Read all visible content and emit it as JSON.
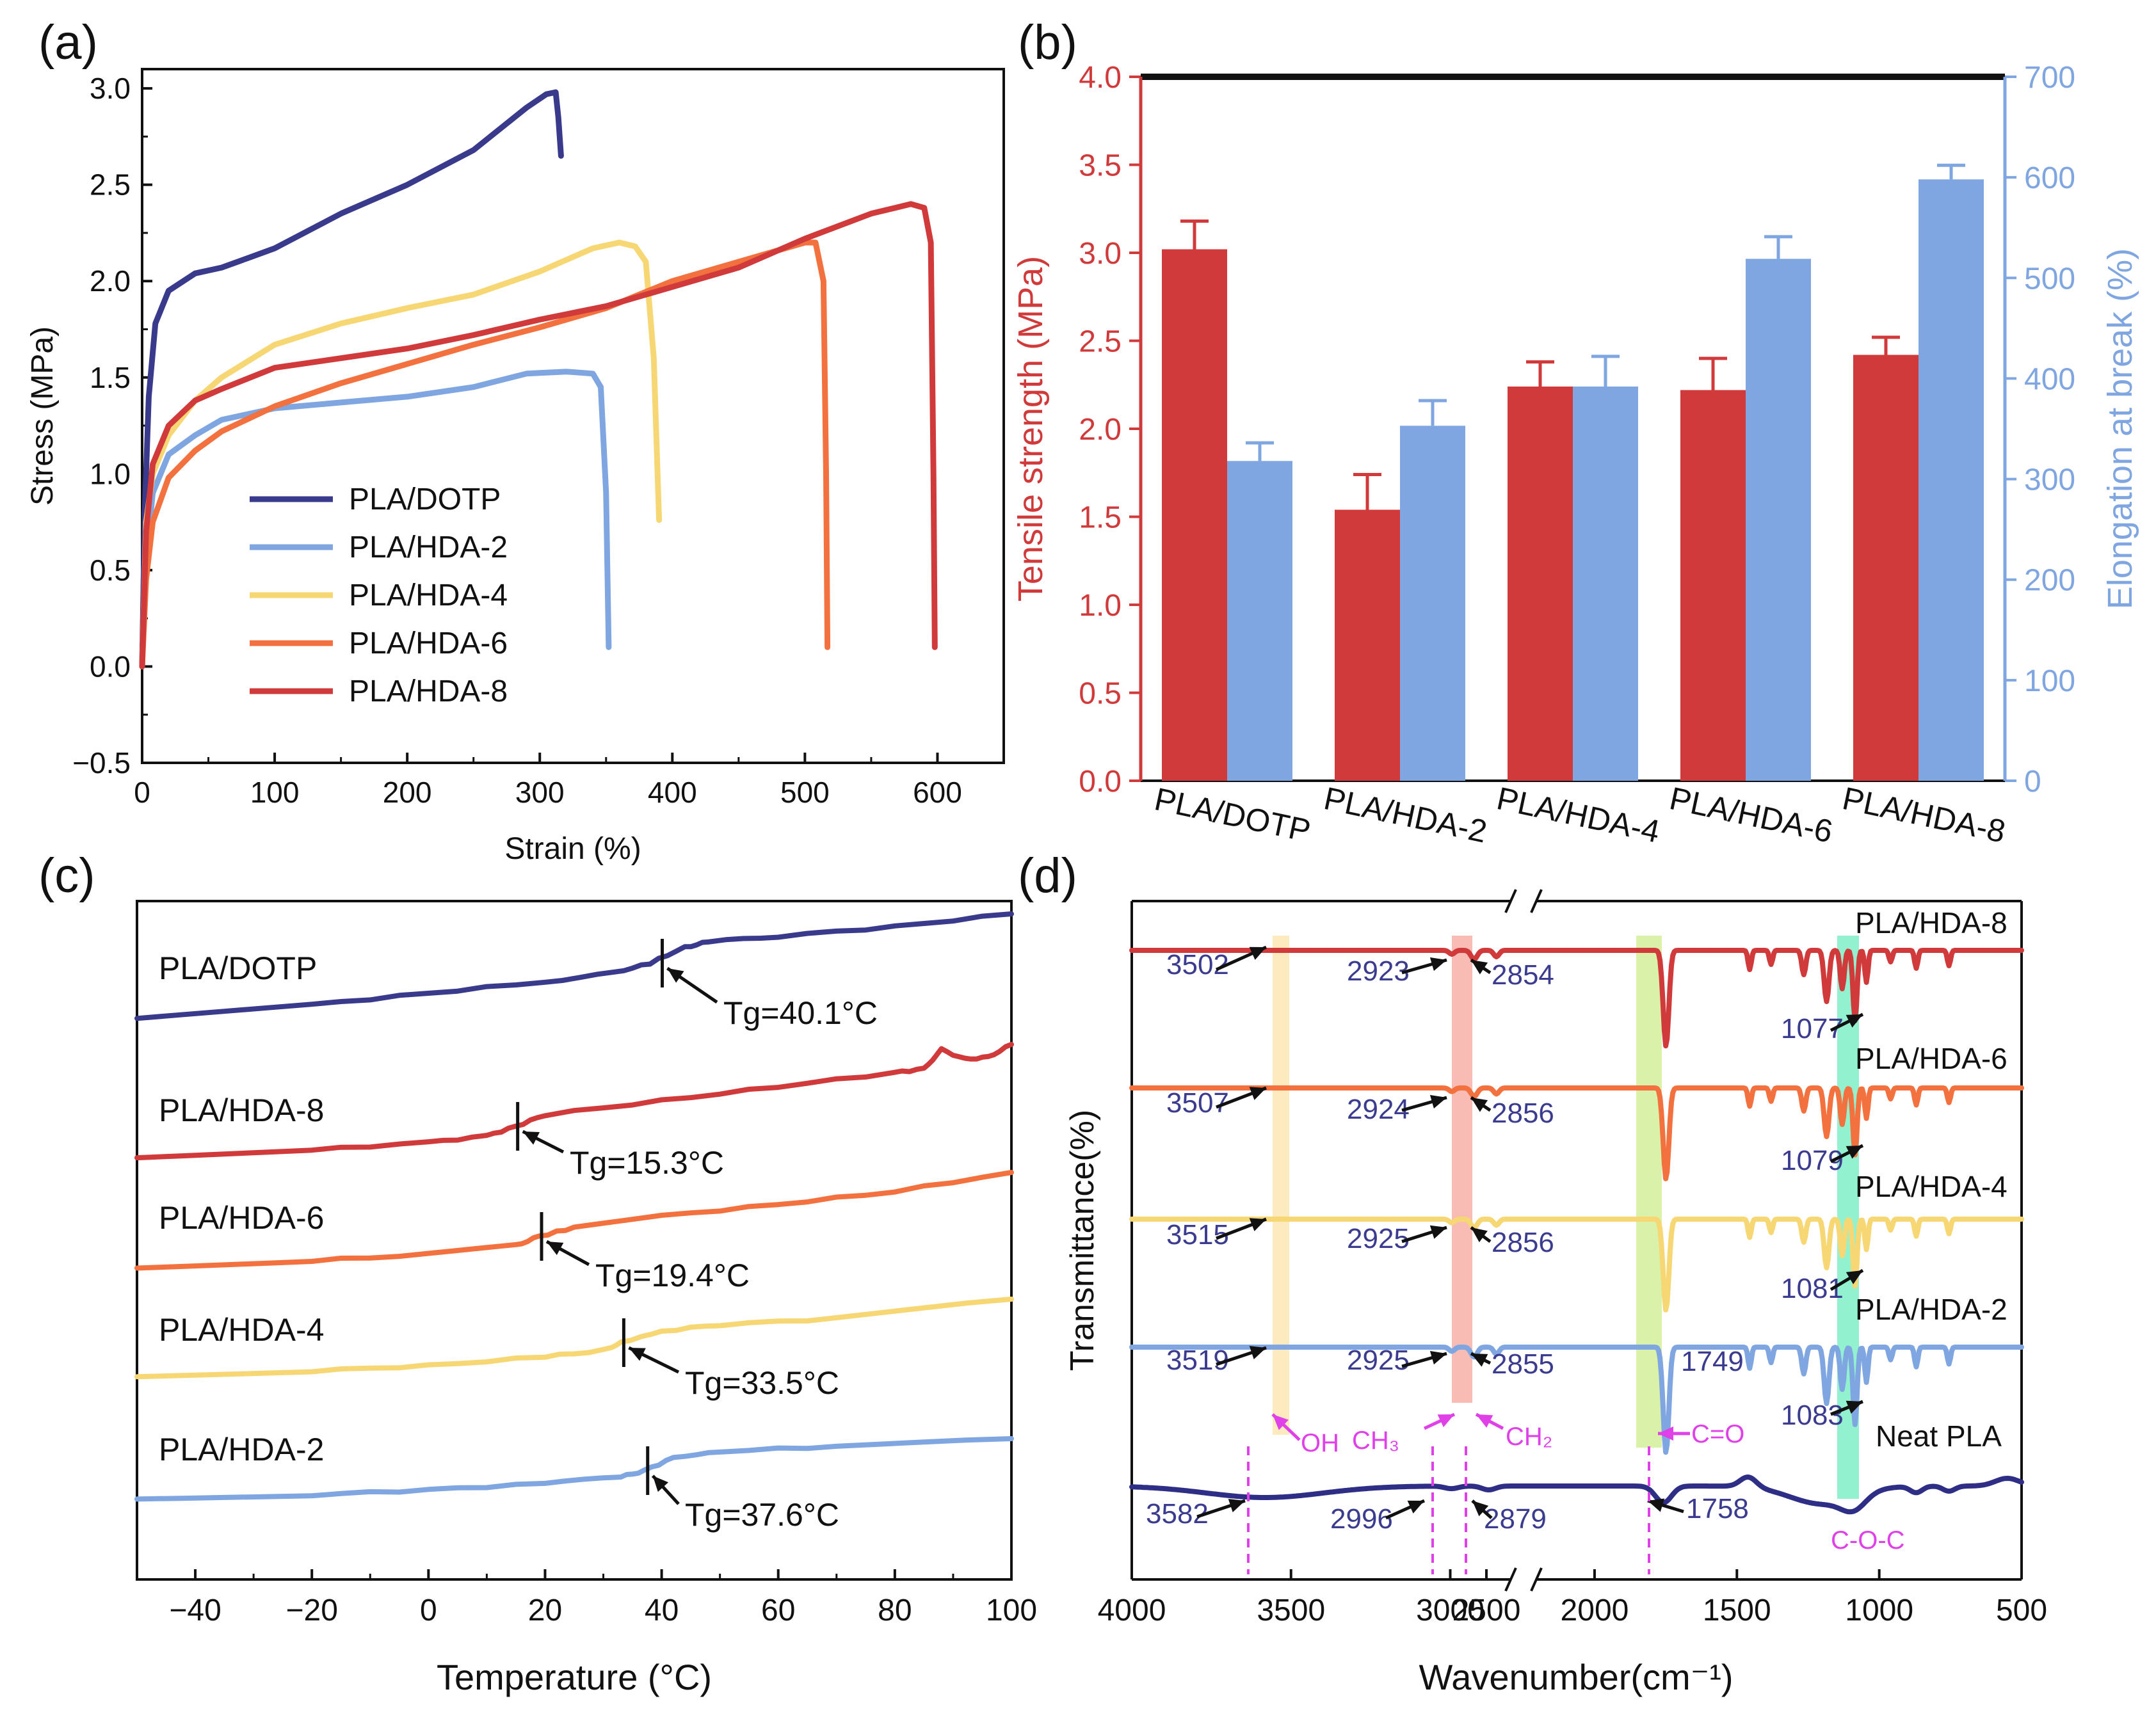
{
  "colors": {
    "DOTP": "#3a3a8c",
    "HDA2": "#7fa6e0",
    "HDA4": "#f7d774",
    "HDA6": "#f2713e",
    "HDA8": "#d03a3a",
    "NEAT": "#2e2e86",
    "red": "#d03a3a",
    "blue": "#7fa6e0",
    "magenta": "#e040e8",
    "purple": "#3b3b8f",
    "band_oh": "#fde9b8",
    "band_ch": "#f7b0a8",
    "band_co": "#d4ee9a",
    "band_coc": "#7ff0c8"
  },
  "chart_data": [
    {
      "panel": "a",
      "panel_label": "(a)",
      "type": "line",
      "xlabel": "Strain (%)",
      "ylabel": "Stress (MPa)",
      "xlim": [
        0,
        650
      ],
      "ylim": [
        -0.5,
        3.1
      ],
      "xticks": [
        0,
        100,
        200,
        300,
        400,
        500,
        600
      ],
      "yticks": [
        -0.5,
        0.0,
        0.5,
        1.0,
        1.5,
        2.0,
        2.5,
        3.0
      ],
      "xtick_labels": [
        "0",
        "100",
        "200",
        "300",
        "400",
        "500",
        "600"
      ],
      "ytick_labels": [
        "−0.5",
        "0.0",
        "0.5",
        "1.0",
        "1.5",
        "2.0",
        "2.5",
        "3.0"
      ],
      "legend": [
        "PLA/DOTP",
        "PLA/HDA-2",
        "PLA/HDA-4",
        "PLA/HDA-6",
        "PLA/HDA-8"
      ],
      "series": [
        {
          "name": "PLA/DOTP",
          "color_key": "DOTP",
          "points": [
            [
              0,
              0
            ],
            [
              2,
              0.8
            ],
            [
              5,
              1.4
            ],
            [
              10,
              1.78
            ],
            [
              20,
              1.95
            ],
            [
              40,
              2.04
            ],
            [
              60,
              2.07
            ],
            [
              80,
              2.12
            ],
            [
              100,
              2.17
            ],
            [
              150,
              2.35
            ],
            [
              200,
              2.5
            ],
            [
              250,
              2.68
            ],
            [
              290,
              2.9
            ],
            [
              305,
              2.97
            ],
            [
              312,
              2.98
            ],
            [
              314,
              2.85
            ],
            [
              316,
              2.65
            ]
          ]
        },
        {
          "name": "PLA/HDA-2",
          "color_key": "HDA2",
          "points": [
            [
              0,
              0
            ],
            [
              3,
              0.55
            ],
            [
              8,
              0.9
            ],
            [
              20,
              1.1
            ],
            [
              40,
              1.2
            ],
            [
              60,
              1.28
            ],
            [
              100,
              1.34
            ],
            [
              150,
              1.37
            ],
            [
              200,
              1.4
            ],
            [
              250,
              1.45
            ],
            [
              290,
              1.52
            ],
            [
              320,
              1.53
            ],
            [
              340,
              1.52
            ],
            [
              346,
              1.45
            ],
            [
              350,
              0.9
            ],
            [
              352,
              0.1
            ]
          ]
        },
        {
          "name": "PLA/HDA-4",
          "color_key": "HDA4",
          "points": [
            [
              0,
              0
            ],
            [
              3,
              0.75
            ],
            [
              8,
              1.0
            ],
            [
              20,
              1.2
            ],
            [
              40,
              1.38
            ],
            [
              60,
              1.5
            ],
            [
              100,
              1.67
            ],
            [
              150,
              1.78
            ],
            [
              200,
              1.86
            ],
            [
              250,
              1.93
            ],
            [
              300,
              2.05
            ],
            [
              340,
              2.17
            ],
            [
              360,
              2.2
            ],
            [
              372,
              2.18
            ],
            [
              380,
              2.1
            ],
            [
              386,
              1.6
            ],
            [
              390,
              0.76
            ]
          ]
        },
        {
          "name": "PLA/HDA-6",
          "color_key": "HDA6",
          "points": [
            [
              0,
              0
            ],
            [
              3,
              0.45
            ],
            [
              8,
              0.75
            ],
            [
              20,
              0.98
            ],
            [
              40,
              1.12
            ],
            [
              60,
              1.22
            ],
            [
              100,
              1.35
            ],
            [
              150,
              1.47
            ],
            [
              200,
              1.57
            ],
            [
              250,
              1.67
            ],
            [
              300,
              1.76
            ],
            [
              350,
              1.86
            ],
            [
              400,
              2.0
            ],
            [
              450,
              2.1
            ],
            [
              500,
              2.2
            ],
            [
              508,
              2.2
            ],
            [
              514,
              2.0
            ],
            [
              516,
              1.0
            ],
            [
              517,
              0.1
            ]
          ]
        },
        {
          "name": "PLA/HDA-8",
          "color_key": "HDA8",
          "points": [
            [
              0,
              0
            ],
            [
              3,
              0.7
            ],
            [
              8,
              1.05
            ],
            [
              20,
              1.25
            ],
            [
              40,
              1.38
            ],
            [
              60,
              1.44
            ],
            [
              100,
              1.55
            ],
            [
              150,
              1.6
            ],
            [
              200,
              1.65
            ],
            [
              250,
              1.72
            ],
            [
              300,
              1.8
            ],
            [
              350,
              1.87
            ],
            [
              400,
              1.97
            ],
            [
              450,
              2.07
            ],
            [
              500,
              2.22
            ],
            [
              550,
              2.35
            ],
            [
              580,
              2.4
            ],
            [
              590,
              2.38
            ],
            [
              595,
              2.2
            ],
            [
              597,
              1.0
            ],
            [
              598,
              0.1
            ]
          ]
        }
      ]
    },
    {
      "panel": "b",
      "panel_label": "(b)",
      "type": "bar",
      "categories": [
        "PLA/DOTP",
        "PLA/HDA-2",
        "PLA/HDA-4",
        "PLA/HDA-6",
        "PLA/HDA-8"
      ],
      "ylabel": "Tensile strength (MPa)",
      "y2label": "Elongation at break (%)",
      "ylim": [
        0,
        4
      ],
      "y2lim": [
        0,
        700
      ],
      "yticks": [
        0.0,
        0.5,
        1.0,
        1.5,
        2.0,
        2.5,
        3.0,
        3.5,
        4.0
      ],
      "ytick_labels": [
        "0.0",
        "0.5",
        "1.0",
        "1.5",
        "2.0",
        "2.5",
        "3.0",
        "3.5",
        "4.0"
      ],
      "y2ticks": [
        0,
        100,
        200,
        300,
        400,
        500,
        600,
        700
      ],
      "y2tick_labels": [
        "0",
        "100",
        "200",
        "300",
        "400",
        "500",
        "600",
        "700"
      ],
      "series": [
        {
          "name": "Tensile strength",
          "axis": "left",
          "color_key": "red",
          "values": [
            3.02,
            1.54,
            2.24,
            2.22,
            2.42
          ],
          "errors": [
            0.16,
            0.2,
            0.14,
            0.18,
            0.1
          ]
        },
        {
          "name": "Elongation at break",
          "axis": "right",
          "color_key": "blue",
          "values": [
            318,
            353,
            392,
            519,
            598
          ],
          "errors": [
            18,
            25,
            30,
            22,
            14
          ]
        }
      ]
    },
    {
      "panel": "c",
      "panel_label": "(c)",
      "type": "line",
      "xlabel": "Temperature (°C)",
      "xlim": [
        -50,
        100
      ],
      "xticks": [
        -40,
        -20,
        0,
        20,
        40,
        60,
        80,
        100
      ],
      "xtick_labels": [
        "−40",
        "−20",
        "0",
        "20",
        "40",
        "60",
        "80",
        "100"
      ],
      "series": [
        {
          "name": "PLA/DOTP",
          "color_key": "DOTP",
          "tg": 40.1,
          "tg_label": "Tg=40.1°C",
          "points": [
            [
              -50,
              1591
            ],
            [
              -20,
              1570
            ],
            [
              0,
              1552
            ],
            [
              20,
              1534
            ],
            [
              32,
              1520
            ],
            [
              38,
              1505
            ],
            [
              44,
              1480
            ],
            [
              48,
              1472
            ],
            [
              60,
              1463
            ],
            [
              80,
              1448
            ],
            [
              100,
              1428
            ]
          ]
        },
        {
          "name": "PLA/HDA-8",
          "color_key": "HDA8",
          "tg": 15.3,
          "tg_label": "Tg=15.3°C",
          "points": [
            [
              -50,
              1808
            ],
            [
              -20,
              1797
            ],
            [
              0,
              1785
            ],
            [
              10,
              1775
            ],
            [
              15,
              1760
            ],
            [
              20,
              1742
            ],
            [
              40,
              1720
            ],
            [
              60,
              1698
            ],
            [
              80,
              1676
            ],
            [
              85,
              1670
            ],
            [
              88,
              1640
            ],
            [
              92,
              1655
            ],
            [
              96,
              1652
            ],
            [
              100,
              1632
            ]
          ]
        },
        {
          "name": "PLA/HDA-6",
          "color_key": "HDA6",
          "tg": 19.4,
          "tg_label": "Tg=19.4°C",
          "points": [
            [
              -50,
              1980
            ],
            [
              -20,
              1970
            ],
            [
              0,
              1960
            ],
            [
              15,
              1946
            ],
            [
              19,
              1932
            ],
            [
              25,
              1918
            ],
            [
              40,
              1900
            ],
            [
              60,
              1882
            ],
            [
              80,
              1862
            ],
            [
              100,
              1832
            ]
          ]
        },
        {
          "name": "PLA/HDA-4",
          "color_key": "HDA4",
          "tg": 33.5,
          "tg_label": "Tg=33.5°C",
          "points": [
            [
              -50,
              2150
            ],
            [
              -20,
              2142
            ],
            [
              0,
              2134
            ],
            [
              20,
              2120
            ],
            [
              30,
              2110
            ],
            [
              33,
              2098
            ],
            [
              40,
              2080
            ],
            [
              50,
              2070
            ],
            [
              70,
              2060
            ],
            [
              100,
              2030
            ]
          ]
        },
        {
          "name": "PLA/HDA-2",
          "color_key": "HDA2",
          "tg": 37.6,
          "tg_label": "Tg=37.6°C",
          "points": [
            [
              -50,
              2342
            ],
            [
              -20,
              2336
            ],
            [
              0,
              2328
            ],
            [
              20,
              2318
            ],
            [
              33,
              2308
            ],
            [
              37,
              2298
            ],
            [
              42,
              2278
            ],
            [
              50,
              2268
            ],
            [
              70,
              2260
            ],
            [
              100,
              2248
            ]
          ]
        }
      ]
    },
    {
      "panel": "d",
      "panel_label": "(d)",
      "type": "line",
      "xlabel": "Wavenumber(cm⁻¹)",
      "ylabel": "Transmittance(%)",
      "xlim": [
        4000,
        500
      ],
      "axis_break": "between 2800 and 2200 cm⁻¹",
      "xtick_labels": [
        "4000",
        "3500",
        "3000",
        "2500",
        "2000",
        "1500",
        "1000",
        "500"
      ],
      "series_labels": [
        "PLA/HDA-8",
        "PLA/HDA-6",
        "PLA/HDA-4",
        "PLA/HDA-2",
        "Neat PLA"
      ],
      "bands": [
        {
          "label": "OH",
          "position": 3500
        },
        {
          "label": "CH₃ / CH₂",
          "position": 2900
        },
        {
          "label": "C=O",
          "position": 1749
        },
        {
          "label": "C-O-C",
          "position": 1080
        }
      ],
      "peak_labels": {
        "HDA8": [
          "3502",
          "2923",
          "2854",
          "1077"
        ],
        "HDA6": [
          "3507",
          "2924",
          "2856",
          "1079"
        ],
        "HDA4": [
          "3515",
          "2925",
          "2856",
          "1081"
        ],
        "HDA2": [
          "3519",
          "2925",
          "2855",
          "1749",
          "1083"
        ],
        "NEAT": [
          "3582",
          "2996",
          "2879",
          "1758"
        ]
      },
      "group_labels": [
        "OH",
        "CH₃",
        "CH₂",
        "C=O",
        "C-O-C"
      ]
    }
  ]
}
